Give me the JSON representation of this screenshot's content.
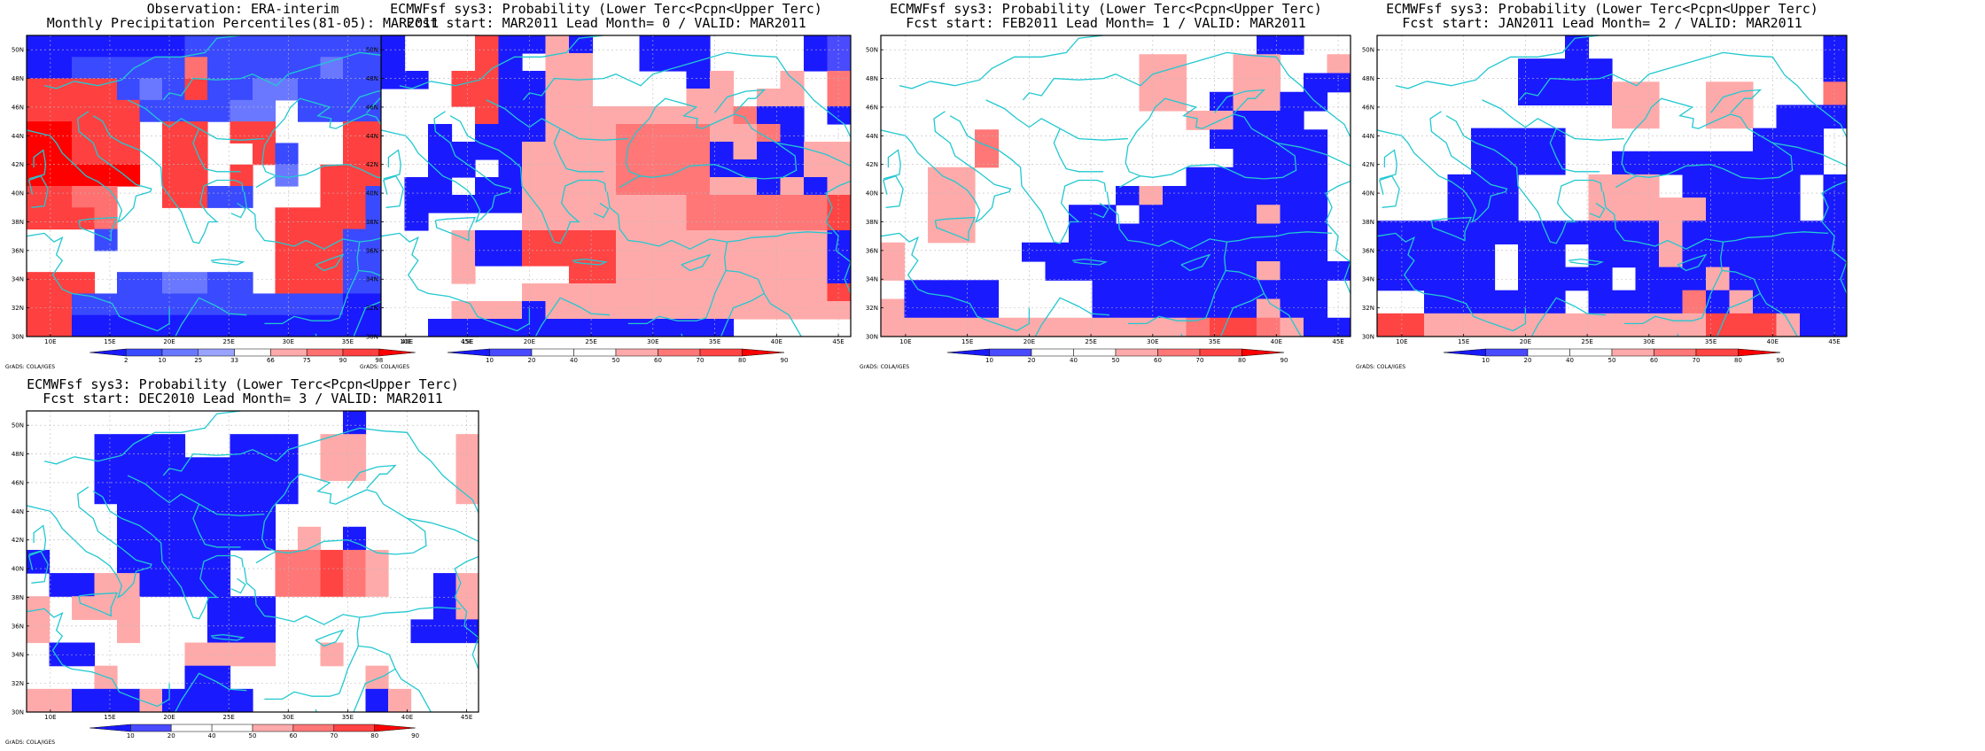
{
  "lon_ticks": [
    "10E",
    "15E",
    "20E",
    "25E",
    "30E",
    "35E",
    "40E",
    "45E"
  ],
  "lat_ticks": [
    "30N",
    "32N",
    "34N",
    "36N",
    "38N",
    "40N",
    "42N",
    "44N",
    "46N",
    "48N",
    "50N"
  ],
  "grads_credit": "GrADS: COLA/IGES",
  "colors": {
    "coast": "#22c8d0",
    "grid": "#bbbbbb",
    "obs_bins": [
      "#1a1aff",
      "#3a4aff",
      "#6a78ff",
      "#9aa4ff",
      "#ffffff",
      "#ffaaaa",
      "#ff7070",
      "#ff4040",
      "#ff0000"
    ],
    "prob_bins": [
      "#1a1aff",
      "#4a4aff",
      "#ffffff",
      "#ffffff",
      "#ffaaaa",
      "#ff7777",
      "#ff4444",
      "#ff0000"
    ]
  },
  "panels": [
    {
      "title_line1": "Observation: ERA-interim",
      "title_line2": "Monthly Precipitation Percentiles(81-05): MAR2011",
      "colorbar": {
        "labels": [
          "2",
          "10",
          "25",
          "33",
          "66",
          "75",
          "90",
          "98"
        ]
      },
      "chart_data": {
        "type": "heatmap",
        "xlim": [
          8,
          46
        ],
        "ylim": [
          30,
          51
        ],
        "grid": [
          "aaaaaaabbbbbbbbbbbba",
          "aabbbbbgbbbbbcbbbbcb",
          "hhhhbcbhbbccbbbbhhgh",
          "hhhhhbbbbcc.bbbbhhg.",
          "iihhh.hh.hh...hhhhh.",
          "iihhh.hh..hb..hhbbc.",
          "iiiii.hh.h.c.hhhbcb.",
          "hhgg..hhbb...hhbbbb.",
          "hhhg.......hhhhbbbbb",
          "...b.......hhhbbbbbb",
          "...........hhhbbbbbb",
          "hhh.bbccbb.hhhbbbbbb",
          "hhbbbbbbbbbbbbaaabbb",
          "hhaaaaaaaaaaaaaaaaaa"
        ]
      }
    },
    {
      "title_line1": "ECMWFsf sys3: Probability (Lower Terc<Pcpn<Upper Terc)",
      "title_line2": "Fcst start: MAR2011  Lead Month= 0 / VALID: MAR2011",
      "colorbar": {
        "labels": [
          "10",
          "20",
          "40",
          "50",
          "60",
          "70",
          "80",
          "90"
        ]
      },
      "chart_data": {
        "type": "heatmap",
        "xlim": [
          8,
          46
        ],
        "ylim": [
          30,
          51
        ],
        "grid": [
          "a...gaaea..aaa....ab",
          "a...ga.ee..aaa....ab",
          "aa.ggaaee....ae..e.f",
          "...ggaaee....ee.ee.f",
          "....gaaeeeeeeeefaa.a",
          "..a.aaaeeeffffeefa..",
          "..aaaaeeeeffffaeaaee",
          "..aa.aeeeeffffaaaaee",
          ".aa.aaeeeeffffeeaeae",
          ".aaaaaeeeeeeeffffffg",
          ".a....eeeeeeeffffffg",
          "...eaaggggeeeeeeeeea",
          "...eaaggggeeeeeeeeea",
          "...e....ggeeeeeeeeea",
          "......eeeeeeeeeeeeeg",
          "...eeeaeeeeeeeeeeeee",
          "..aaaaaaaaaaaaa....."
        ]
      }
    },
    {
      "title_line1": "ECMWFsf sys3: Probability (Lower Terc<Pcpn<Upper Terc)",
      "title_line2": "Fcst start: FEB2011  Lead Month= 1 / VALID: MAR2011",
      "colorbar": {
        "labels": [
          "10",
          "20",
          "40",
          "50",
          "60",
          "70",
          "80",
          "90"
        ]
      },
      "chart_data": {
        "type": "heatmap",
        "xlim": [
          8,
          46
        ],
        "ylim": [
          30,
          51
        ],
        "grid": [
          "................aa..",
          "...........ee..ee..e",
          "...........ee..ee.aa",
          "...........ee.aeeaa.",
          ".............eeaaa..",
          "....f.........aaaaa.",
          "....f..........aaaa.",
          "..ee.........aaaaaa.",
          "..ee......aeaaaaaaa.",
          "..ee....aa.aaaaaeaa.",
          "..ee....aaaaaaaaaaa.",
          "e.....aaaaaaaaaaaaa.",
          "e......aaaaaaaaaeaaa",
          ".aaaa....aaaaaaaaaa.",
          "eaaaa....aaaaaaaeaa.",
          "eeeeeeeeeeeeefggfeaa"
        ]
      }
    },
    {
      "title_line1": "ECMWFsf sys3: Probability (Lower Terc<Pcpn<Upper Terc)",
      "title_line2": "Fcst start: JAN2011  Lead Month= 2 / VALID: MAR2011",
      "colorbar": {
        "labels": [
          "10",
          "20",
          "40",
          "50",
          "60",
          "70",
          "80",
          "90"
        ]
      },
      "chart_data": {
        "type": "heatmap",
        "xlim": [
          8,
          46
        ],
        "ylim": [
          30,
          51
        ],
        "grid": [
          "........a..........a",
          "......aaaa.........a",
          "......aaaaee..ee...f",
          "..........ee..ee.aaa",
          "....aaaa........aaa.",
          "....aaaa..aaaaaaaaa.",
          "...aaa...eee.aaaaa.a",
          "...aaa...eeeeeaaaa.a",
          "aaaaaaaaaaaaeaaaaaaa",
          "aaaaa.aa.aaaeaaaaaaa",
          "aaaaa.aaaa.aaaeaaaaa",
          "..aaaaaa.aaaafaeaaaa",
          "ggeeeeeeeeeeeegggeaa"
        ]
      }
    },
    {
      "title_line1": "ECMWFsf sys3: Probability (Lower Terc<Pcpn<Upper Terc)",
      "title_line2": "Fcst start: DEC2010  Lead Month= 3 / VALID: MAR2011",
      "colorbar": {
        "labels": [
          "10",
          "20",
          "40",
          "50",
          "60",
          "70",
          "80",
          "90"
        ]
      },
      "chart_data": {
        "type": "heatmap",
        "xlim": [
          8,
          46
        ],
        "ylim": [
          30,
          51
        ],
        "grid": [
          "..............a.....",
          "...aaaa..aaa.ee....e",
          "...aaaaaaaaa.ee....e",
          "...aaaaaaaaa.......e",
          "....aaaaaaa.........",
          "....aaaaaaa.e.a.....",
          "a...aaaaa..ffgfe....",
          ".aaeeaaaa..ffgfe..ae",
          "e.eee...aaa.......ae",
          "e...e...aaa......aaa",
          ".aa....eeee..e......",
          "...e...aa......e....",
          "eeaaaeaaaa.....ae..."
        ]
      }
    }
  ]
}
